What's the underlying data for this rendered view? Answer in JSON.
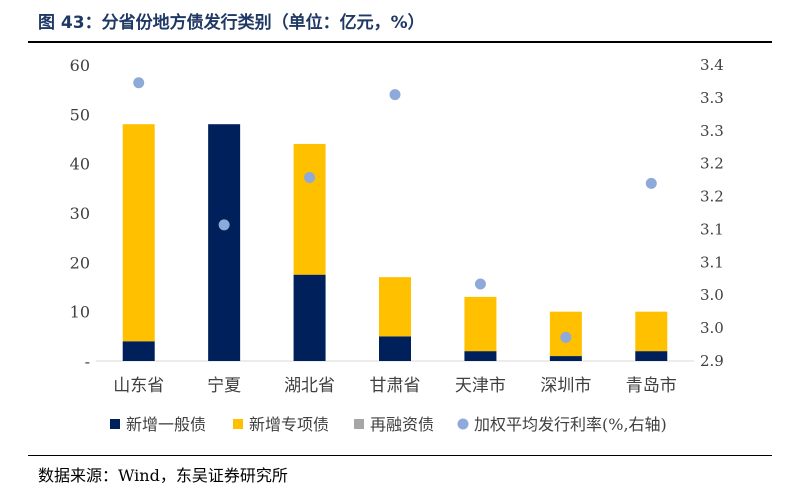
{
  "title": "图 43：分省份地方债发行类别（单位：亿元，%）",
  "source": "数据来源：Wind，东吴证券研究所",
  "colors": {
    "新增一般债": "#00205b",
    "新增专项债": "#ffc000",
    "再融资债": "#a6a6a6",
    "加权平均发行利率": "#8eaadb"
  },
  "chart_data": {
    "type": "bar",
    "stacked": true,
    "categories": [
      "山东省",
      "宁夏",
      "湖北省",
      "甘肃省",
      "天津市",
      "深圳市",
      "青岛市"
    ],
    "series": [
      {
        "name": "新增一般债",
        "type": "bar",
        "axis": "left",
        "values": [
          4,
          48,
          17.5,
          5,
          2,
          1,
          2
        ]
      },
      {
        "name": "新增专项债",
        "type": "bar",
        "axis": "left",
        "values": [
          44,
          0,
          26.5,
          12,
          11,
          9,
          8
        ]
      },
      {
        "name": "再融资债",
        "type": "bar",
        "axis": "left",
        "values": [
          0,
          0,
          0,
          0,
          0,
          0,
          0
        ]
      },
      {
        "name": "加权平均发行利率(%,右轴)",
        "type": "scatter",
        "axis": "right",
        "values": [
          3.37,
          3.13,
          3.21,
          3.35,
          3.03,
          2.94,
          3.2
        ]
      }
    ],
    "left_axis": {
      "ylim": [
        0,
        60
      ],
      "ticks": [
        "-",
        "10",
        "20",
        "30",
        "40",
        "50",
        "60"
      ]
    },
    "right_axis": {
      "ylim": [
        2.9,
        3.4
      ],
      "ticks": [
        "2.9",
        "3.0",
        "3.0",
        "3.1",
        "3.1",
        "3.2",
        "3.2",
        "3.3",
        "3.3",
        "3.4"
      ]
    },
    "legend_position": "bottom",
    "grid": false
  }
}
